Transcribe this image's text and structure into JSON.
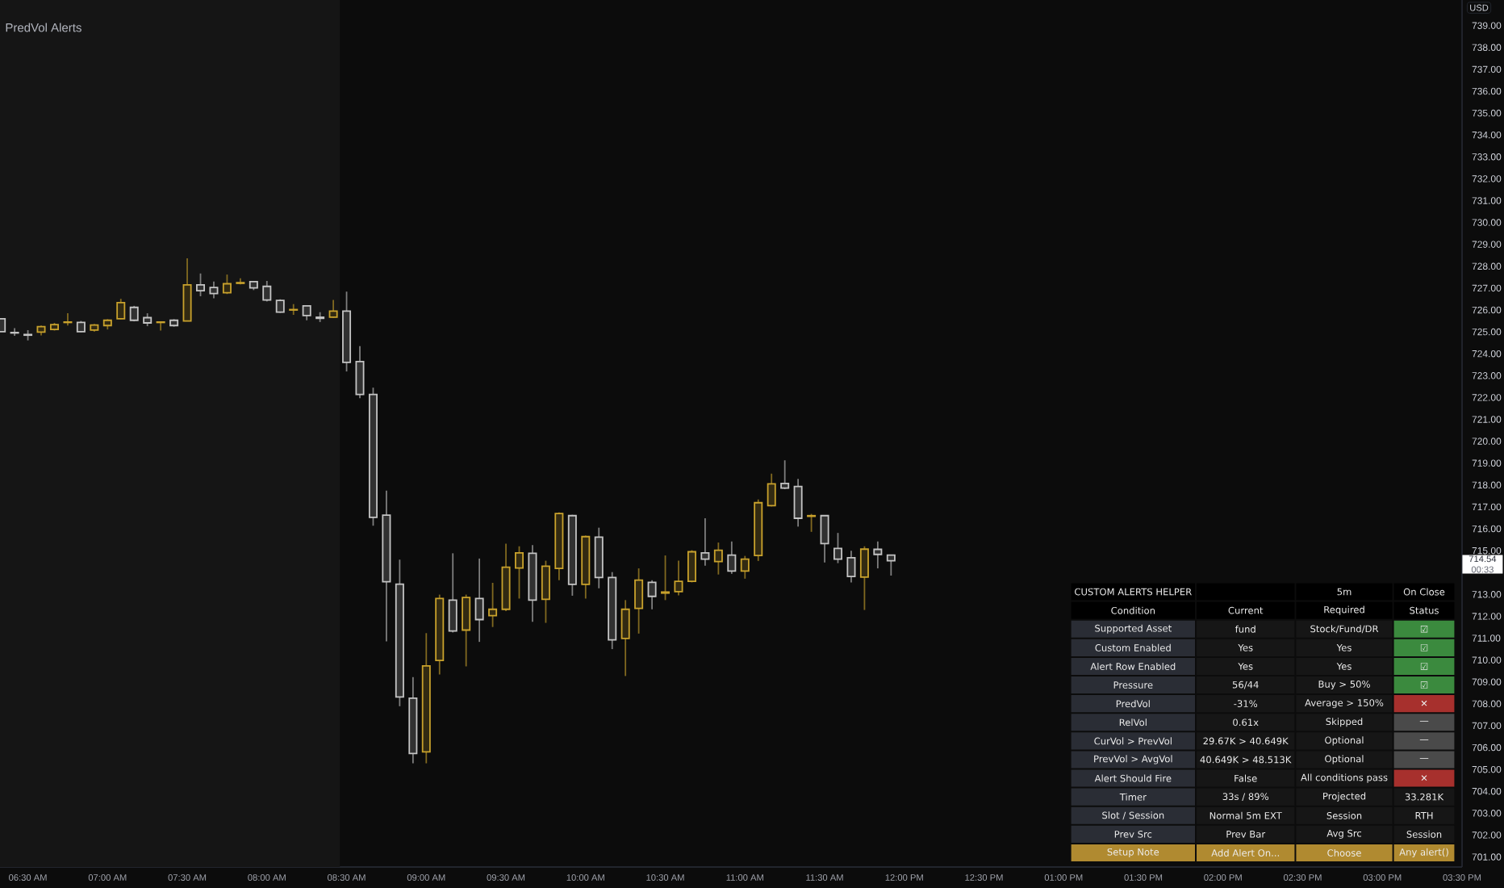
{
  "chart_data": [
    {
      "type": "candlestick",
      "subtitle": "PredVol Alerts",
      "ylabel": "USD",
      "x": [
        6.3333,
        6.4167,
        6.5,
        6.5833,
        6.6667,
        6.75,
        6.8333,
        6.9167,
        7,
        7.0833,
        7.1667,
        7.25,
        7.3333,
        7.4167,
        7.5,
        7.5833,
        7.6667,
        7.75,
        7.8333,
        7.9167,
        8,
        8.0833,
        8.1667,
        8.25,
        8.3333,
        8.4167,
        8.5,
        8.5833,
        8.6667,
        8.75,
        8.8333,
        8.9167,
        9,
        9.0833,
        9.1667,
        9.25,
        9.3333,
        9.4167,
        9.5,
        9.5833,
        9.6667,
        9.75,
        9.8333,
        9.9167,
        10,
        10.0833,
        10.1667,
        10.25,
        10.3333,
        10.4167,
        10.5,
        10.5833,
        10.6667,
        10.75,
        10.8333,
        10.9167,
        11,
        11.0833,
        11.1667,
        11.25,
        11.3333,
        11.4167,
        11.5,
        11.5833,
        11.6667,
        11.75,
        11.8333,
        11.9167
      ],
      "ohlc": [
        [
          725.6,
          725.6,
          725.01,
          725.01
        ],
        [
          724.97,
          725.17,
          724.82,
          724.95
        ],
        [
          724.88,
          725.08,
          724.61,
          724.85
        ],
        [
          724.99,
          725.29,
          724.84,
          725.24
        ],
        [
          725.11,
          725.41,
          725.06,
          725.33
        ],
        [
          725.43,
          725.85,
          725.29,
          725.45
        ],
        [
          725.43,
          725.5,
          724.99,
          725.01
        ],
        [
          725.08,
          725.36,
          725.01,
          725.31
        ],
        [
          725.29,
          725.58,
          725.11,
          725.53
        ],
        [
          725.6,
          726.51,
          725.58,
          726.34
        ],
        [
          726.12,
          726.19,
          725.48,
          725.53
        ],
        [
          725.65,
          725.85,
          725.26,
          725.41
        ],
        [
          725.43,
          725.48,
          725.06,
          725.45
        ],
        [
          725.53,
          725.58,
          725.24,
          725.29
        ],
        [
          725.5,
          728.36,
          725.48,
          727.15
        ],
        [
          727.15,
          727.67,
          726.63,
          726.88
        ],
        [
          727.03,
          727.3,
          726.54,
          726.75
        ],
        [
          726.79,
          727.62,
          726.73,
          727.2
        ],
        [
          727.22,
          727.45,
          727.17,
          727.25
        ],
        [
          727.3,
          727.33,
          726.91,
          727.01
        ],
        [
          727.08,
          727.33,
          726.39,
          726.46
        ],
        [
          726.44,
          726.49,
          725.87,
          725.9
        ],
        [
          726.0,
          726.27,
          725.78,
          726.02
        ],
        [
          726.19,
          726.21,
          725.53,
          725.75
        ],
        [
          725.67,
          725.9,
          725.45,
          725.62
        ],
        [
          725.67,
          726.46,
          725.65,
          725.95
        ],
        [
          725.95,
          726.84,
          723.19,
          723.61
        ],
        [
          723.64,
          724.35,
          721.97,
          722.14
        ],
        [
          722.14,
          722.45,
          716.14,
          716.52
        ],
        [
          716.62,
          717.74,
          710.85,
          713.58
        ],
        [
          713.47,
          714.59,
          707.89,
          708.31
        ],
        [
          708.26,
          709.22,
          705.28,
          705.73
        ],
        [
          705.8,
          711.23,
          705.28,
          709.73
        ],
        [
          709.98,
          712.99,
          709.34,
          712.81
        ],
        [
          712.74,
          714.88,
          711.26,
          711.33
        ],
        [
          711.37,
          712.99,
          709.71,
          712.86
        ],
        [
          712.81,
          714.64,
          710.83,
          711.85
        ],
        [
          712.03,
          713.53,
          711.51,
          712.32
        ],
        [
          712.32,
          715.32,
          712.24,
          714.24
        ],
        [
          714.21,
          715.2,
          712.81,
          714.9
        ],
        [
          714.88,
          715.25,
          711.75,
          712.74
        ],
        [
          712.78,
          714.54,
          711.7,
          714.29
        ],
        [
          714.19,
          716.75,
          713.65,
          716.7
        ],
        [
          716.6,
          716.64,
          712.94,
          713.46
        ],
        [
          713.46,
          715.69,
          712.81,
          715.64
        ],
        [
          715.62,
          716.05,
          713.28,
          713.77
        ],
        [
          713.77,
          714.02,
          710.5,
          710.92
        ],
        [
          710.99,
          712.74,
          709.27,
          712.32
        ],
        [
          712.36,
          714.19,
          711.21,
          713.65
        ],
        [
          713.55,
          713.65,
          712.32,
          712.91
        ],
        [
          713.06,
          714.78,
          712.74,
          713.11
        ],
        [
          713.13,
          714.54,
          712.96,
          713.6
        ],
        [
          713.6,
          715.02,
          713.55,
          714.95
        ],
        [
          714.9,
          716.48,
          714.31,
          714.61
        ],
        [
          714.5,
          715.37,
          713.91,
          715.02
        ],
        [
          714.8,
          715.42,
          713.94,
          714.07
        ],
        [
          714.07,
          714.76,
          713.72,
          714.61
        ],
        [
          714.78,
          717.34,
          714.53,
          717.19
        ],
        [
          717.06,
          718.52,
          717.02,
          718.05
        ],
        [
          718.07,
          719.13,
          717.81,
          717.86
        ],
        [
          717.93,
          718.28,
          716.1,
          716.48
        ],
        [
          716.57,
          716.68,
          715.86,
          716.6
        ],
        [
          716.6,
          716.62,
          714.46,
          715.32
        ],
        [
          715.1,
          715.81,
          714.43,
          714.61
        ],
        [
          714.68,
          715.0,
          713.55,
          713.82
        ],
        [
          713.79,
          715.2,
          712.29,
          715.07
        ],
        [
          715.06,
          715.42,
          714.19,
          714.83
        ],
        [
          714.8,
          714.8,
          713.86,
          714.54
        ]
      ],
      "colors": [
        "#c4c4c4",
        "#c4c4c4",
        "#c4c4c4",
        "#c9a22c",
        "#c9a22c",
        "#c9a22c",
        "#c4c4c4",
        "#c9a22c",
        "#c9a22c",
        "#c9a22c",
        "#c4c4c4",
        "#c4c4c4",
        "#c9a22c",
        "#c4c4c4",
        "#c9a22c",
        "#c4c4c4",
        "#c4c4c4",
        "#c9a22c",
        "#c9a22c",
        "#c4c4c4",
        "#c4c4c4",
        "#c4c4c4",
        "#c9a22c",
        "#c4c4c4",
        "#c4c4c4",
        "#c9a22c",
        "#c4c4c4",
        "#c4c4c4",
        "#c4c4c4",
        "#c4c4c4",
        "#c4c4c4",
        "#c4c4c4",
        "#c9a22c",
        "#c9a22c",
        "#c4c4c4",
        "#c9a22c",
        "#c4c4c4",
        "#c9a22c",
        "#c9a22c",
        "#c9a22c",
        "#c4c4c4",
        "#c9a22c",
        "#c9a22c",
        "#c4c4c4",
        "#c9a22c",
        "#c4c4c4",
        "#c4c4c4",
        "#c9a22c",
        "#c9a22c",
        "#c4c4c4",
        "#c9a22c",
        "#c9a22c",
        "#c9a22c",
        "#c4c4c4",
        "#c9a22c",
        "#c4c4c4",
        "#c9a22c",
        "#c9a22c",
        "#c9a22c",
        "#c4c4c4",
        "#c4c4c4",
        "#c9a22c",
        "#c4c4c4",
        "#c4c4c4",
        "#c4c4c4",
        "#c9a22c",
        "#c4c4c4",
        "#c4c4c4"
      ],
      "xlim": [
        6.325,
        15.5
      ],
      "ylim": [
        700.54,
        740.17
      ],
      "xticks": [
        {
          "value": 6.5,
          "label": "06:30 AM"
        },
        {
          "value": 7,
          "label": "07:00 AM"
        },
        {
          "value": 7.5,
          "label": "07:30 AM"
        },
        {
          "value": 8,
          "label": "08:00 AM"
        },
        {
          "value": 8.5,
          "label": "08:30 AM"
        },
        {
          "value": 9,
          "label": "09:00 AM"
        },
        {
          "value": 9.5,
          "label": "09:30 AM"
        },
        {
          "value": 10,
          "label": "10:00 AM"
        },
        {
          "value": 10.5,
          "label": "10:30 AM"
        },
        {
          "value": 11,
          "label": "11:00 AM"
        },
        {
          "value": 11.5,
          "label": "11:30 AM"
        },
        {
          "value": 12,
          "label": "12:00 PM"
        },
        {
          "value": 12.5,
          "label": "12:30 PM"
        },
        {
          "value": 13,
          "label": "01:00 PM"
        },
        {
          "value": 13.5,
          "label": "01:30 PM"
        },
        {
          "value": 14,
          "label": "02:00 PM"
        },
        {
          "value": 14.5,
          "label": "02:30 PM"
        },
        {
          "value": 15,
          "label": "03:00 PM"
        },
        {
          "value": 15.5,
          "label": "03:30 PM"
        }
      ],
      "yticks": [
        {
          "value": 701,
          "label": "701.00"
        },
        {
          "value": 702,
          "label": "702.00"
        },
        {
          "value": 703,
          "label": "703.00"
        },
        {
          "value": 704,
          "label": "704.00"
        },
        {
          "value": 705,
          "label": "705.00"
        },
        {
          "value": 706,
          "label": "706.00"
        },
        {
          "value": 707,
          "label": "707.00"
        },
        {
          "value": 708,
          "label": "708.00"
        },
        {
          "value": 709,
          "label": "709.00"
        },
        {
          "value": 710,
          "label": "710.00"
        },
        {
          "value": 711,
          "label": "711.00"
        },
        {
          "value": 712,
          "label": "712.00"
        },
        {
          "value": 713,
          "label": "713.00"
        },
        {
          "value": 715,
          "label": "715.00"
        },
        {
          "value": 716,
          "label": "716.00"
        },
        {
          "value": 717,
          "label": "717.00"
        },
        {
          "value": 718,
          "label": "718.00"
        },
        {
          "value": 719,
          "label": "719.00"
        },
        {
          "value": 720,
          "label": "720.00"
        },
        {
          "value": 721,
          "label": "721.00"
        },
        {
          "value": 722,
          "label": "722.00"
        },
        {
          "value": 723,
          "label": "723.00"
        },
        {
          "value": 724,
          "label": "724.00"
        },
        {
          "value": 725,
          "label": "725.00"
        },
        {
          "value": 726,
          "label": "726.00"
        },
        {
          "value": 727,
          "label": "727.00"
        },
        {
          "value": 728,
          "label": "728.00"
        },
        {
          "value": 729,
          "label": "729.00"
        },
        {
          "value": 730,
          "label": "730.00"
        },
        {
          "value": 731,
          "label": "731.00"
        },
        {
          "value": 732,
          "label": "732.00"
        },
        {
          "value": 733,
          "label": "733.00"
        },
        {
          "value": 734,
          "label": "734.00"
        },
        {
          "value": 735,
          "label": "735.00"
        },
        {
          "value": 736,
          "label": "736.00"
        },
        {
          "value": 737,
          "label": "737.00"
        },
        {
          "value": 738,
          "label": "738.00"
        },
        {
          "value": 739,
          "label": "739.00"
        }
      ],
      "bands": [
        {
          "axis": "x",
          "from": 6.325,
          "to": 8.458,
          "color": "#151515"
        }
      ],
      "annotations": [
        "714.54",
        "00:33"
      ]
    },
    {
      "type": "other",
      "title": "CUSTOM ALERTS HELPER",
      "annotations": [
        "5m",
        "On Close",
        "Condition",
        "Current",
        "Required",
        "Status",
        "Supported Asset",
        "fund",
        "Stock/Fund/DR",
        "☑",
        "Custom Enabled",
        "Yes",
        "Yes",
        "☑",
        "Alert Row Enabled",
        "Yes",
        "Yes",
        "☑",
        "Pressure",
        "56/44",
        "Buy > 50%",
        "☑",
        "PredVol",
        "-31%",
        "Average > 150%",
        "✕",
        "RelVol",
        "0.61x",
        "Skipped",
        "—",
        "CurVol > PrevVol",
        "29.67K > 40.649K",
        "Optional",
        "—",
        "PrevVol > AvgVol",
        "40.649K > 48.513K",
        "Optional",
        "—",
        "Alert Should Fire",
        "False",
        "All conditions pass",
        "✕",
        "Timer",
        "33s / 89%",
        "Projected",
        "33.281K",
        "Slot / Session",
        "Normal 5m EXT",
        "Session",
        "RTH",
        "Prev Src",
        "Prev Bar",
        "Avg Src",
        "Session",
        "Setup Note",
        "Add Alert On...",
        "Choose",
        "Any alert()"
      ],
      "colors": [
        "#000000",
        "#000000",
        "#000000",
        "#000000",
        "#000000",
        "#000000",
        "#000000",
        "#000000",
        "#2a2d35",
        "#161616",
        "#161616",
        "#3b8a3e",
        "#2a2d35",
        "#161616",
        "#161616",
        "#3b8a3e",
        "#2a2d35",
        "#161616",
        "#161616",
        "#3b8a3e",
        "#2a2d35",
        "#161616",
        "#161616",
        "#3b8a3e",
        "#2a2d35",
        "#161616",
        "#161616",
        "#a7302d",
        "#2a2d35",
        "#161616",
        "#161616",
        "#4a4a4a",
        "#2a2d35",
        "#161616",
        "#161616",
        "#4a4a4a",
        "#2a2d35",
        "#161616",
        "#161616",
        "#4a4a4a",
        "#2a2d35",
        "#161616",
        "#161616",
        "#a7302d",
        "#2a2d35",
        "#161616",
        "#161616",
        "#161616",
        "#2a2d35",
        "#161616",
        "#161616",
        "#161616",
        "#2a2d35",
        "#161616",
        "#161616",
        "#161616",
        "#b08a30",
        "#b08a30",
        "#b08a30",
        "#b08a30"
      ]
    }
  ]
}
